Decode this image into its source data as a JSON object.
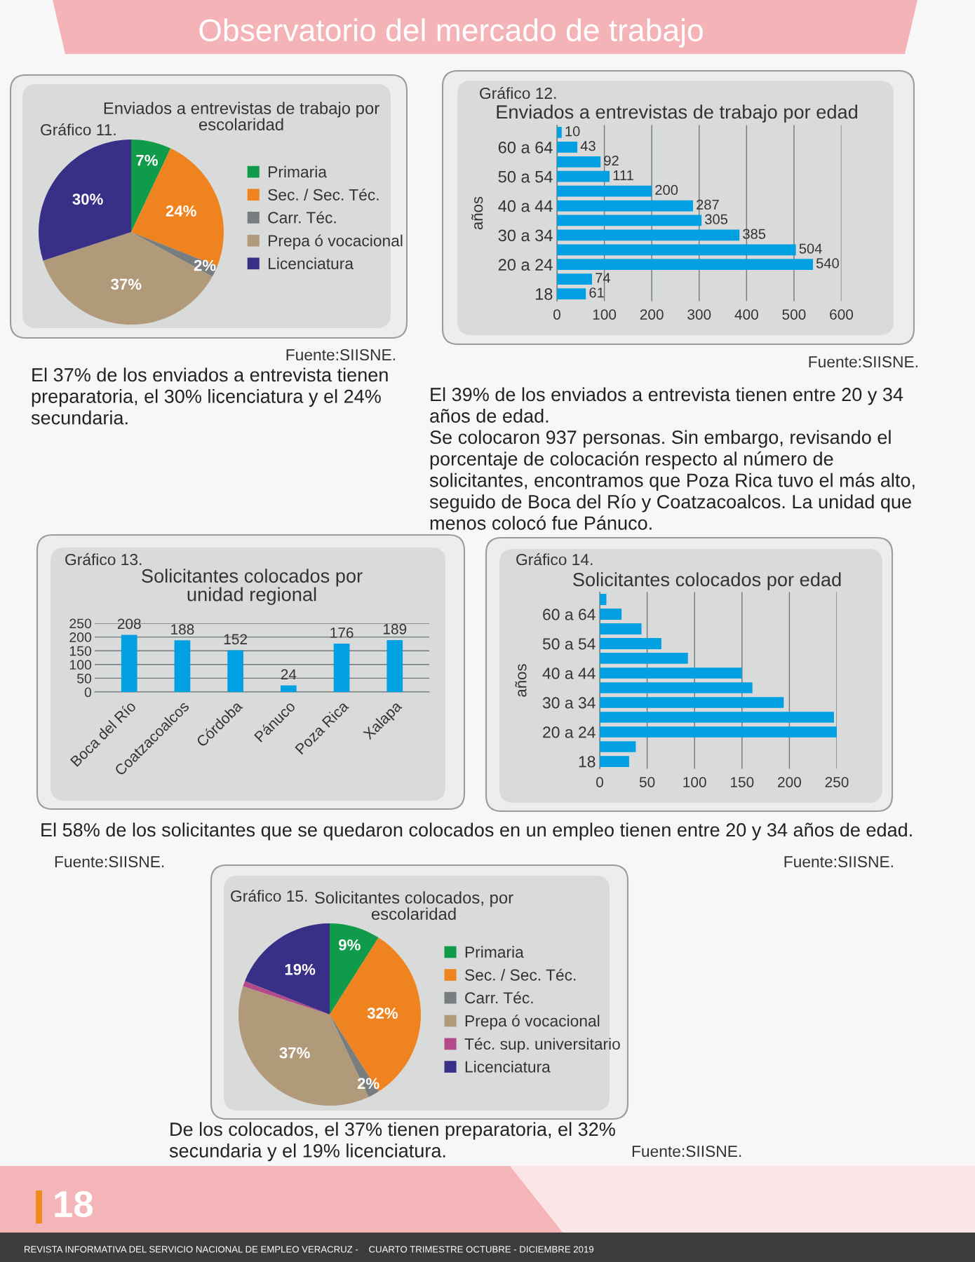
{
  "chart_data": [
    {
      "type": "pie",
      "title": "Enviados a entrevistas de trabajo por\nescolaridad",
      "categories": [
        "Primaria",
        "Sec. / Sec. Téc.",
        "Carr. Téc.",
        "Prepa ó vocacional",
        "Licenciatura"
      ],
      "values": [
        7,
        24,
        2,
        37,
        30
      ],
      "colors": [
        "#0f9b4a",
        "#ee8320",
        "#787d80",
        "#b09a7a",
        "#3a2f86"
      ],
      "value_labels": [
        "7%",
        "24%",
        "2%",
        "37%",
        "30%"
      ],
      "legend": "right",
      "annotations": [
        "Observatorio del mercado de trabajo",
        "Gráfico 11.",
        "Fuente:SIISNE.",
        "El 37% de los enviados a entrevista tienen\npreparatoria, el 30% licenciatura y el 24%\nsecundaria."
      ]
    },
    {
      "type": "bar",
      "orientation": "horizontal",
      "title": "Enviados a entrevistas de trabajo por edad",
      "ylabel": "años",
      "categories": [
        null,
        "60 a 64",
        null,
        "50 a 54",
        null,
        "40 a 44",
        null,
        "30 a 34",
        null,
        "20 a 24",
        null,
        "18"
      ],
      "values": [
        10,
        43,
        92,
        111,
        200,
        287,
        305,
        385,
        504,
        540,
        74,
        61
      ],
      "color": "#00a0e3",
      "xlim": [
        0,
        600
      ],
      "xticks": [
        0,
        100,
        200,
        300,
        400,
        500,
        600
      ],
      "grid": "x",
      "data_labels": true,
      "annotations": [
        "Gráfico 12.",
        "Fuente:SIISNE.",
        "El 39% de los enviados a entrevista tienen entre 20 y 34\naños de edad.",
        "Se colocaron 937 personas. Sin embargo, revisando el\nporcentaje de colocación respecto al número de\nsolicitantes, encontramos que Poza Rica tuvo el más alto,\nseguido de Boca del Río y Coatzacoalcos. La unidad que\nmenos colocó fue Pánuco."
      ]
    },
    {
      "type": "bar",
      "title": "Solicitantes colocados por\nunidad regional",
      "categories": [
        "Boca del Río",
        "Coatzacoalcos",
        "Córdoba",
        "Pánuco",
        "Poza Rica",
        "Xalapa"
      ],
      "values": [
        208,
        188,
        152,
        24,
        176,
        189
      ],
      "color": "#00a0e3",
      "ylim": [
        0,
        250
      ],
      "yticks": [
        0,
        50,
        100,
        150,
        200,
        250
      ],
      "grid": "y",
      "data_labels": true,
      "annotations": [
        "Gráfico 13.",
        "Fuente:SIISNE."
      ]
    },
    {
      "type": "bar",
      "orientation": "horizontal",
      "title": "Solicitantes colocados por edad",
      "ylabel": "años",
      "categories": [
        null,
        "60 a 64",
        null,
        "50 a 54",
        null,
        "40 a 44",
        null,
        "30 a 34",
        null,
        "20 a 24",
        null,
        "18"
      ],
      "values": [
        7,
        23,
        44,
        65,
        93,
        150,
        161,
        194,
        247,
        250,
        38,
        31
      ],
      "color": "#00a0e3",
      "xlim": [
        0,
        250
      ],
      "xticks": [
        0,
        50,
        100,
        150,
        200,
        250
      ],
      "grid": "x",
      "annotations": [
        "Gráfico 14.",
        "El 58% de los solicitantes que se quedaron colocados en un empleo tienen entre 20 y 34 años de edad.",
        "Fuente:SIISNE."
      ]
    },
    {
      "type": "pie",
      "title": "Solicitantes colocados, por\nescolaridad",
      "categories": [
        "Primaria",
        "Sec. / Sec. Téc.",
        "Carr. Téc.",
        "Prepa ó vocacional",
        "Téc. sup. universitario",
        "Licenciatura"
      ],
      "values": [
        9,
        32,
        2,
        37,
        1,
        19
      ],
      "colors": [
        "#0f9b4a",
        "#ee8320",
        "#787d80",
        "#b09a7a",
        "#b44a8c",
        "#3a2f86"
      ],
      "value_labels": [
        "9%",
        "32%",
        "2%",
        "37%",
        null,
        "19%"
      ],
      "legend": "right",
      "annotations": [
        "Gráfico 15.",
        "De los colocados, el 37% tienen preparatoria, el 32%\nsecundaria y el 19% licenciatura.",
        "Fuente:SIISNE.",
        "18",
        "REVISTA INFORMATIVA DEL SERVICIO NACIONAL DE EMPLEO VERACRUZ -    CUARTO TRIMESTRE OCTUBRE - DICIEMBRE 2019"
      ]
    }
  ]
}
